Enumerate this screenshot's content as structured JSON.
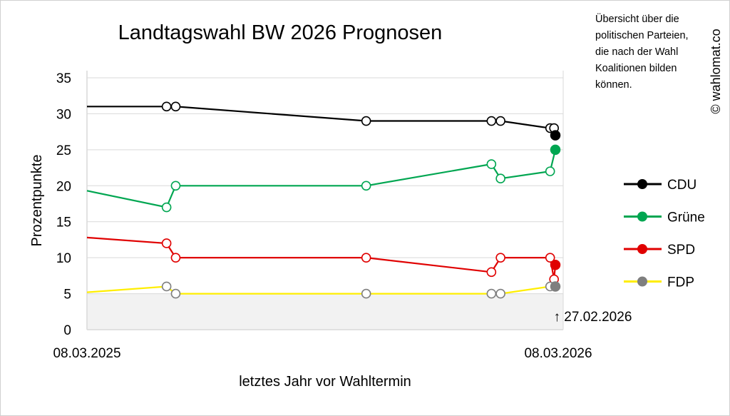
{
  "page": {
    "watermark": "© wahlomat.co",
    "info_text": [
      "Übersicht über die",
      "politischen Parteien,",
      "die nach der Wahl",
      "Koalitionen bilden",
      "können."
    ]
  },
  "chart_data": {
    "type": "line",
    "title": "Landtagswahl BW 2026 Prognosen",
    "xlabel": "letztes Jahr vor Wahltermin",
    "ylabel": "Prozentpunkte",
    "ylim": [
      0,
      35
    ],
    "yticks": [
      0,
      5,
      10,
      15,
      20,
      25,
      30,
      35
    ],
    "xlim": [
      "2025-03-08",
      "2026-03-08"
    ],
    "xtick_labels": [
      "08.03.2025",
      "08.03.2026"
    ],
    "grid": true,
    "threshold": {
      "value": 5,
      "shaded_below": true
    },
    "annotation": {
      "date": "2026-02-27",
      "text": "↑ 27.02.2026"
    },
    "legend_position": "right",
    "series": [
      {
        "name": "CDU",
        "color": "#000000",
        "start": 31,
        "points": [
          {
            "x": "2025-05-08",
            "y": 31
          },
          {
            "x": "2025-05-15",
            "y": 31
          },
          {
            "x": "2025-10-08",
            "y": 29
          },
          {
            "x": "2026-01-12",
            "y": 29
          },
          {
            "x": "2026-01-19",
            "y": 29
          },
          {
            "x": "2026-02-26",
            "y": 28
          },
          {
            "x": "2026-03-01",
            "y": 28
          },
          {
            "x": "2026-03-02",
            "y": 27,
            "current": true
          }
        ]
      },
      {
        "name": "Grüne",
        "color": "#00a651",
        "start": 19.3,
        "points": [
          {
            "x": "2025-05-08",
            "y": 17
          },
          {
            "x": "2025-05-15",
            "y": 20
          },
          {
            "x": "2025-10-08",
            "y": 20
          },
          {
            "x": "2026-01-12",
            "y": 23
          },
          {
            "x": "2026-01-19",
            "y": 21
          },
          {
            "x": "2026-02-26",
            "y": 22
          },
          {
            "x": "2026-03-02",
            "y": 25,
            "current": true
          }
        ]
      },
      {
        "name": "SPD",
        "color": "#e00000",
        "start": 12.8,
        "points": [
          {
            "x": "2025-05-08",
            "y": 12
          },
          {
            "x": "2025-05-15",
            "y": 10
          },
          {
            "x": "2025-10-08",
            "y": 10
          },
          {
            "x": "2026-01-12",
            "y": 8
          },
          {
            "x": "2026-01-19",
            "y": 10
          },
          {
            "x": "2026-02-26",
            "y": 10
          },
          {
            "x": "2026-03-01",
            "y": 7
          },
          {
            "x": "2026-03-02",
            "y": 9,
            "current": true
          }
        ]
      },
      {
        "name": "FDP",
        "color": "#ffee00",
        "marker_color": "#7f7f7f",
        "start": 5.2,
        "points": [
          {
            "x": "2025-05-08",
            "y": 6
          },
          {
            "x": "2025-05-15",
            "y": 5
          },
          {
            "x": "2025-10-08",
            "y": 5
          },
          {
            "x": "2026-01-12",
            "y": 5
          },
          {
            "x": "2026-01-19",
            "y": 5
          },
          {
            "x": "2026-02-26",
            "y": 6
          },
          {
            "x": "2026-03-02",
            "y": 6,
            "current": true
          }
        ]
      }
    ]
  }
}
